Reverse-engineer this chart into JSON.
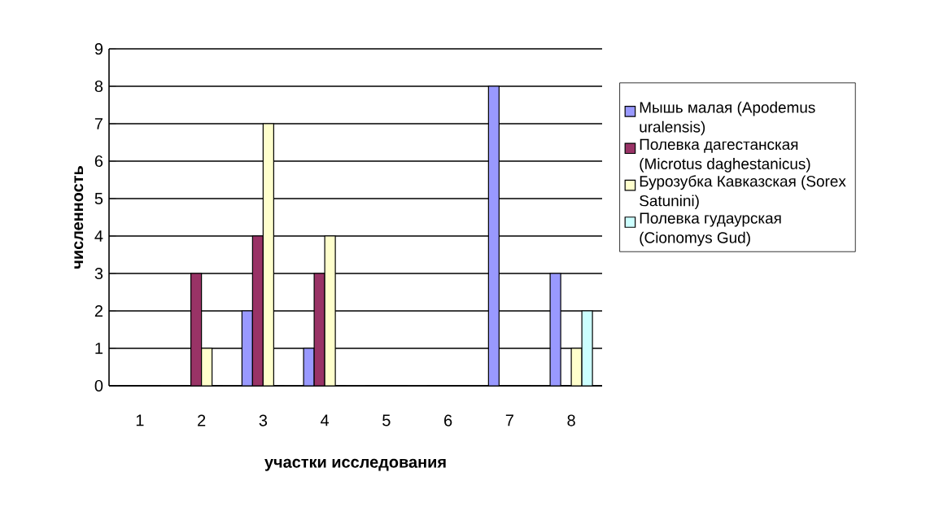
{
  "chart_data": {
    "type": "bar",
    "xlabel": "участки исследования",
    "ylabel": "численность",
    "categories": [
      "1",
      "2",
      "3",
      "4",
      "5",
      "6",
      "7",
      "8"
    ],
    "series": [
      {
        "name": "Мышь малая (Apodemus uralensis)",
        "color": "#9999ff",
        "values": [
          0,
          0,
          2,
          1,
          0,
          0,
          8,
          3
        ]
      },
      {
        "name": "Полевка дагестанская (Microtus daghestanicus)",
        "color": "#993366",
        "values": [
          0,
          3,
          4,
          3,
          0,
          0,
          0,
          0
        ]
      },
      {
        "name": "Бурозубка Кавказская (Sorex Satunini)",
        "color": "#ffffcc",
        "values": [
          0,
          1,
          7,
          4,
          0,
          0,
          0,
          1
        ]
      },
      {
        "name": "Полевка гудаурская (Cionomys Gud)",
        "color": "#ccffff",
        "values": [
          0,
          0,
          0,
          0,
          0,
          0,
          0,
          2
        ]
      }
    ],
    "ylim": [
      0,
      9
    ],
    "yticks": [
      0,
      1,
      2,
      3,
      4,
      5,
      6,
      7,
      8,
      9
    ],
    "grid": "y",
    "legend": "right"
  }
}
